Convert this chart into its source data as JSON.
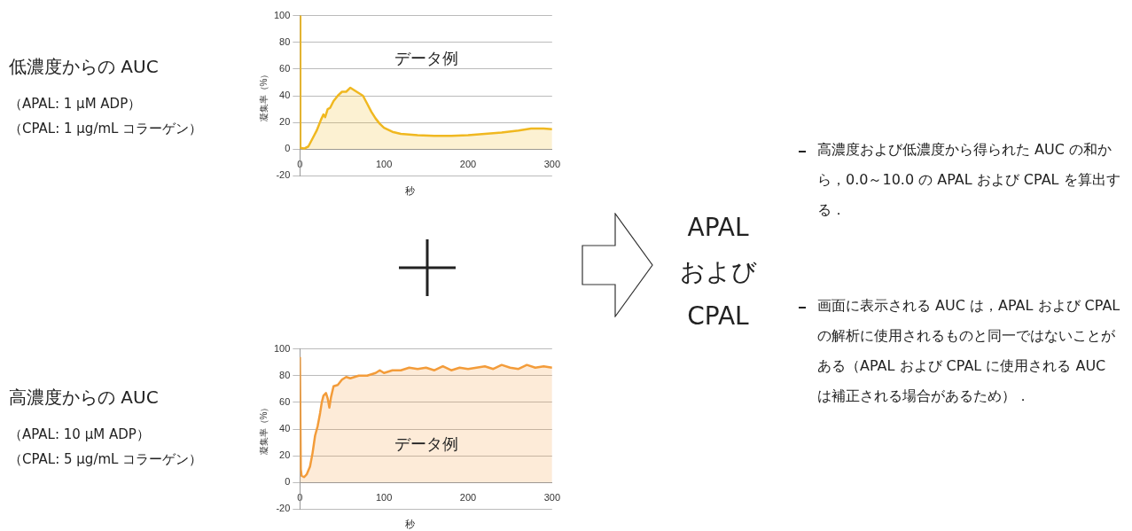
{
  "chart_data": [
    {
      "type": "area",
      "xlabel": "秒",
      "ylabel": "凝集率（%）",
      "annotations": [
        "低濃度からの AUC",
        "（APAL: 1 μM ADP）",
        "（CPAL: 1 μg/mL コラーゲン）",
        "データ例"
      ],
      "xlim": [
        0,
        300
      ],
      "ylim": [
        -20,
        100
      ],
      "xticks": [
        0,
        100,
        200,
        300
      ],
      "yticks": [
        -20,
        0,
        20,
        40,
        60,
        80,
        100
      ],
      "grid": "y",
      "series": [
        {
          "color": "#f0b820",
          "x": [
            0,
            0.5,
            5,
            10,
            15,
            20,
            25,
            28,
            30,
            33,
            36,
            40,
            45,
            50,
            55,
            60,
            65,
            70,
            75,
            80,
            85,
            90,
            95,
            100,
            110,
            120,
            140,
            160,
            180,
            200,
            220,
            240,
            260,
            275,
            290,
            300
          ],
          "values": [
            100,
            1,
            0.5,
            2,
            8,
            14,
            22,
            26,
            24,
            30,
            31,
            36,
            40,
            43,
            43,
            46,
            44,
            42,
            40,
            34,
            28,
            23,
            19,
            16,
            13,
            11.5,
            10.5,
            10,
            10,
            10.5,
            11.5,
            12.5,
            14,
            15.5,
            15.5,
            15
          ]
        }
      ]
    },
    {
      "type": "area",
      "xlabel": "秒",
      "ylabel": "凝集率（%）",
      "annotations": [
        "高濃度からの AUC",
        "（APAL: 10 μM ADP）",
        "（CPAL: 5 μg/mL コラーゲン）",
        "データ例"
      ],
      "xlim": [
        0,
        300
      ],
      "ylim": [
        -20,
        100
      ],
      "xticks": [
        0,
        100,
        200,
        300
      ],
      "yticks": [
        -20,
        0,
        20,
        40,
        60,
        80,
        100
      ],
      "grid": "y",
      "series": [
        {
          "color": "#f39c3a",
          "x": [
            0,
            1,
            2,
            5,
            8,
            12,
            15,
            18,
            21,
            24,
            26,
            28,
            31,
            33,
            35,
            37,
            40,
            45,
            50,
            55,
            60,
            70,
            80,
            90,
            95,
            100,
            110,
            120,
            130,
            140,
            150,
            160,
            170,
            180,
            190,
            200,
            210,
            220,
            230,
            240,
            250,
            260,
            270,
            280,
            290,
            300
          ],
          "values": [
            94,
            10,
            5,
            4,
            6,
            12,
            22,
            35,
            42,
            52,
            60,
            65,
            67,
            63,
            56,
            64,
            72,
            73,
            77,
            79,
            78,
            80,
            80,
            82,
            84,
            82,
            84,
            84,
            86,
            85,
            86,
            84,
            87,
            84,
            86,
            85,
            86,
            87,
            85,
            88,
            86,
            85,
            88,
            86,
            87,
            86
          ]
        }
      ]
    },
    {
      "type": "other",
      "title": "APAL\nおよび\nCPAL",
      "annotations": [
        "高濃度および低濃度から得られた AUC の和から，0.0～10.0 の APAL および CPAL を算出する．",
        "画面に表示される AUC は，APAL および CPAL の解析に使用されるものと同一ではないことがある（APAL および CPAL に使用される AUC は補正される場合があるため）．"
      ]
    }
  ]
}
